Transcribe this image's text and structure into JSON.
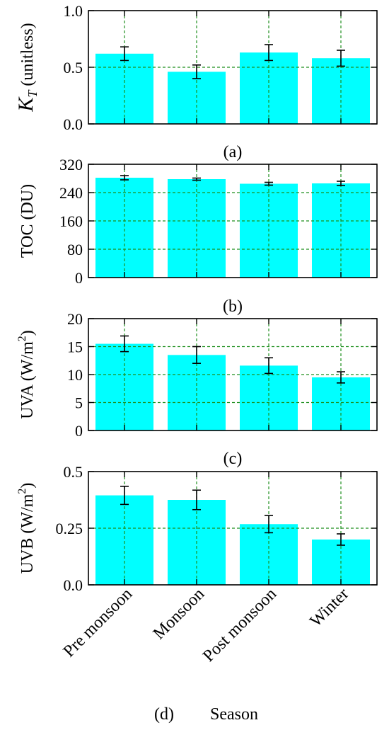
{
  "colors": {
    "bar": "#00ffff",
    "grid": "#1f8f1f",
    "axis": "#000000",
    "errorbar": "#000000"
  },
  "panel_labels": [
    "(a)",
    "(b)",
    "(c)",
    "(d)"
  ],
  "season_label": "Season",
  "categories": [
    "Pre monsoon",
    "Monsoon",
    "Post monsoon",
    "Winter"
  ],
  "chart_data": [
    {
      "type": "bar",
      "id": "kt",
      "ylabel": "K_T (unitless)",
      "ylabel_main": "K",
      "ylabel_sub": "T",
      "ylabel_rest": " (unitless)",
      "ylim": [
        0,
        1.0
      ],
      "yticks": [
        "0.0",
        "0.5",
        "1.0"
      ],
      "ytick_values": [
        0,
        0.5,
        1.0
      ],
      "categories": [
        "Pre monsoon",
        "Monsoon",
        "Post monsoon",
        "Winter"
      ],
      "values": [
        0.62,
        0.46,
        0.63,
        0.58
      ],
      "errors": [
        0.06,
        0.06,
        0.07,
        0.07
      ],
      "grid": true,
      "panel_label": "(a)"
    },
    {
      "type": "bar",
      "id": "toc",
      "ylabel": "TOC (DU)",
      "ylim": [
        0,
        320
      ],
      "yticks": [
        "0",
        "80",
        "160",
        "240",
        "320"
      ],
      "ytick_values": [
        0,
        80,
        160,
        240,
        320
      ],
      "categories": [
        "Pre monsoon",
        "Monsoon",
        "Post monsoon",
        "Winter"
      ],
      "values": [
        282,
        278,
        265,
        266
      ],
      "errors": [
        6,
        3,
        4,
        6
      ],
      "grid": true,
      "panel_label": "(b)"
    },
    {
      "type": "bar",
      "id": "uva",
      "ylabel": "UVA (W/m2)",
      "ylabel_main": "UVA (W/m",
      "ylabel_sup": "2",
      "ylabel_rest": ")",
      "ylim": [
        0,
        20
      ],
      "yticks": [
        "0",
        "5",
        "10",
        "15",
        "20"
      ],
      "ytick_values": [
        0,
        5,
        10,
        15,
        20
      ],
      "categories": [
        "Pre monsoon",
        "Monsoon",
        "Post monsoon",
        "Winter"
      ],
      "values": [
        15.5,
        13.5,
        11.6,
        9.5
      ],
      "errors": [
        1.4,
        1.5,
        1.4,
        1.0
      ],
      "grid": true,
      "panel_label": "(c)"
    },
    {
      "type": "bar",
      "id": "uvb",
      "ylabel": "UVB (W/m2)",
      "ylabel_main": "UVB (W/m",
      "ylabel_sup": "2",
      "ylabel_rest": ")",
      "ylim": [
        0,
        0.5
      ],
      "yticks": [
        "0.0",
        "0.25",
        "0.5"
      ],
      "ytick_values": [
        0,
        0.25,
        0.5
      ],
      "categories": [
        "Pre monsoon",
        "Monsoon",
        "Post monsoon",
        "Winter"
      ],
      "values": [
        0.395,
        0.375,
        0.268,
        0.2
      ],
      "errors": [
        0.04,
        0.043,
        0.038,
        0.025
      ],
      "grid": true,
      "panel_label": "(d)"
    }
  ]
}
